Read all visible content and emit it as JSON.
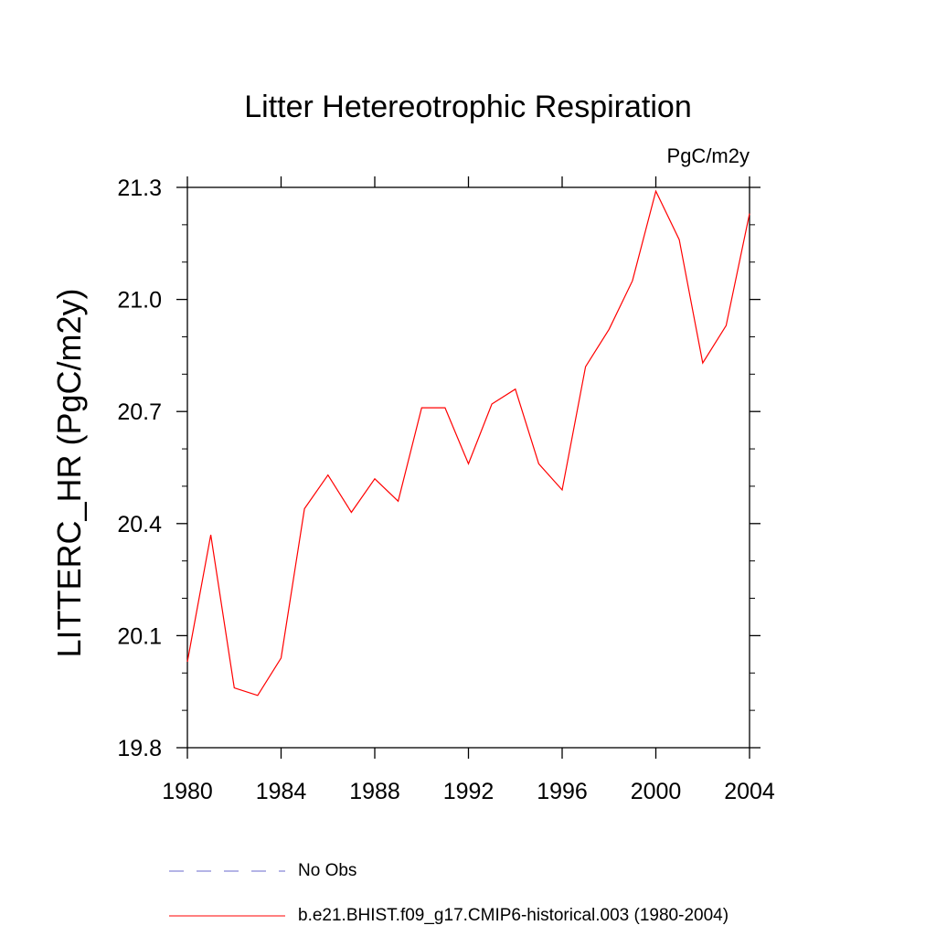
{
  "chart_data": {
    "type": "line",
    "title": "Litter Hetereotrophic Respiration",
    "units": "PgC/m2y",
    "ylabel": "LITTERC_HR  (PgC/m2y)",
    "xlabel": "",
    "xlim": [
      1980,
      2004
    ],
    "ylim": [
      19.8,
      21.3
    ],
    "xticks": [
      1980,
      1984,
      1988,
      1992,
      1996,
      2000,
      2004
    ],
    "xtick_labels": [
      "1980",
      "1984",
      "1988",
      "1992",
      "1996",
      "2000",
      "2004"
    ],
    "yticks": [
      19.8,
      20.1,
      20.4,
      20.7,
      21.0,
      21.3
    ],
    "ytick_labels": [
      "19.8",
      "20.1",
      "20.4",
      "20.7",
      "21.0",
      "21.3"
    ],
    "grid": false,
    "series": [
      {
        "name": "b.e21.BHIST.f09_g17.CMIP6-historical.003 (1980-2004)",
        "color": "#ff0000",
        "style": "solid",
        "x": [
          1980,
          1981,
          1982,
          1983,
          1984,
          1985,
          1986,
          1987,
          1988,
          1989,
          1990,
          1991,
          1992,
          1993,
          1994,
          1995,
          1996,
          1997,
          1998,
          1999,
          2000,
          2001,
          2002,
          2003,
          2004
        ],
        "y": [
          20.03,
          20.37,
          19.96,
          19.94,
          20.04,
          20.44,
          20.53,
          20.43,
          20.52,
          20.46,
          20.71,
          20.71,
          20.56,
          20.72,
          20.76,
          20.56,
          20.49,
          20.82,
          20.92,
          21.05,
          21.29,
          21.16,
          20.83,
          20.93,
          21.23
        ]
      }
    ],
    "legend": [
      {
        "label": "No Obs",
        "color": "#6a6acd",
        "style": "dashed"
      },
      {
        "label": "b.e21.BHIST.f09_g17.CMIP6-historical.003 (1980-2004)",
        "color": "#ff0000",
        "style": "solid"
      }
    ]
  }
}
